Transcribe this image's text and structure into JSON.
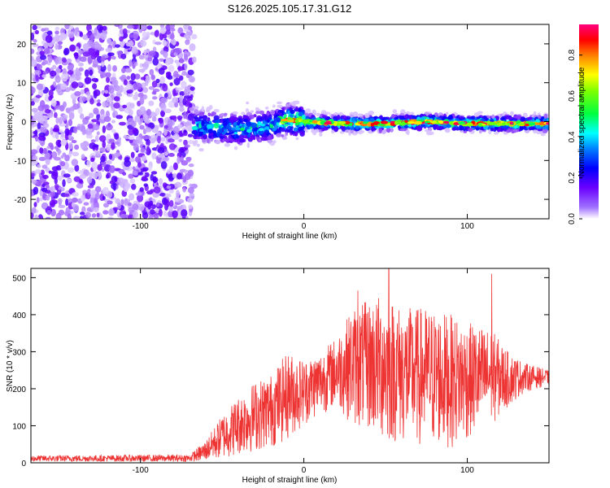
{
  "title": "S126.2025.105.17.31.G12",
  "chart_data": [
    {
      "type": "heatmap",
      "xlabel": "Height of straight line (km)",
      "ylabel": "Frequency (Hz)",
      "xlim": [
        -167,
        150
      ],
      "ylim": [
        -25,
        25
      ],
      "xticks": [
        -100,
        0,
        100
      ],
      "yticks": [
        -20,
        -10,
        0,
        10,
        20
      ],
      "colorbar": {
        "label": "Normalized spectral amplitude",
        "range": [
          0,
          0.95
        ],
        "ticks": [
          0.0,
          0.2,
          0.4,
          0.6,
          0.8
        ],
        "colormap": [
          "#ffffff",
          "#6a00ff",
          "#0000ff",
          "#00ffff",
          "#00ff00",
          "#ffff00",
          "#ff8000",
          "#ff0000",
          "#ff0080"
        ]
      },
      "regions": [
        {
          "x_range": [
            -167,
            -67
          ],
          "description_value": "scattered noise, amplitude 0.05-0.15"
        },
        {
          "x_range": [
            -67,
            150
          ],
          "ridge_frequency": [
            [
              -67,
              -1
            ],
            [
              -40,
              -2
            ],
            [
              -20,
              -1
            ],
            [
              -10,
              0.5
            ],
            [
              0,
              0
            ],
            [
              20,
              -0.5
            ],
            [
              50,
              -0.5
            ],
            [
              75,
              0
            ],
            [
              100,
              -0.5
            ],
            [
              150,
              -0.5
            ]
          ],
          "peak_amplitude": 0.95
        }
      ]
    },
    {
      "type": "line",
      "xlabel": "Height of straight line (km)",
      "ylabel": "SNR (10 * v/v)",
      "xlim": [
        -167,
        150
      ],
      "ylim": [
        0,
        525
      ],
      "xticks": [
        -100,
        0,
        100
      ],
      "yticks": [
        0,
        100,
        200,
        300,
        400,
        500
      ],
      "color": "#ee3333",
      "envelope": [
        {
          "x": -167,
          "low": 3,
          "high": 20
        },
        {
          "x": -70,
          "low": 3,
          "high": 22
        },
        {
          "x": -60,
          "low": 5,
          "high": 60
        },
        {
          "x": -50,
          "low": 10,
          "high": 130
        },
        {
          "x": -40,
          "low": 20,
          "high": 180
        },
        {
          "x": -30,
          "low": 30,
          "high": 220
        },
        {
          "x": -20,
          "low": 40,
          "high": 240
        },
        {
          "x": -10,
          "low": 60,
          "high": 300
        },
        {
          "x": 0,
          "low": 100,
          "high": 280
        },
        {
          "x": 10,
          "low": 130,
          "high": 300
        },
        {
          "x": 20,
          "low": 150,
          "high": 340
        },
        {
          "x": 30,
          "low": 100,
          "high": 420
        },
        {
          "x": 40,
          "low": 80,
          "high": 440
        },
        {
          "x": 50,
          "low": 50,
          "high": 460
        },
        {
          "x": 60,
          "low": 50,
          "high": 420
        },
        {
          "x": 75,
          "low": 40,
          "high": 420
        },
        {
          "x": 90,
          "low": 40,
          "high": 400
        },
        {
          "x": 100,
          "low": 60,
          "high": 380
        },
        {
          "x": 115,
          "low": 100,
          "high": 360
        },
        {
          "x": 125,
          "low": 150,
          "high": 300
        },
        {
          "x": 135,
          "low": 190,
          "high": 270
        },
        {
          "x": 150,
          "low": 210,
          "high": 250
        }
      ],
      "spikes": [
        {
          "x": 33,
          "y": 465
        },
        {
          "x": 52,
          "y": 525
        },
        {
          "x": 115,
          "y": 510
        }
      ]
    }
  ]
}
